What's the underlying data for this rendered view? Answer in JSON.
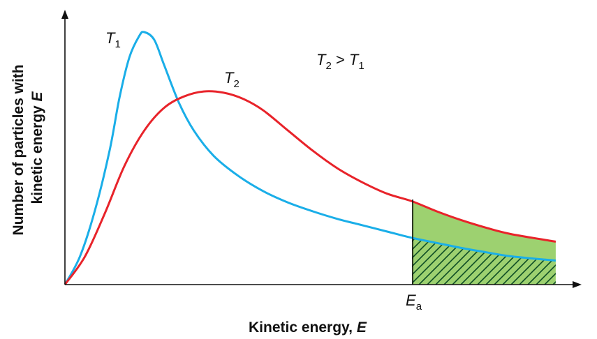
{
  "chart_data": {
    "type": "line",
    "title": "",
    "xlabel": {
      "text": "Kinetic energy, ",
      "var": "E"
    },
    "ylabel": {
      "line1": "Number of particles with",
      "line2_text": "kinetic energy ",
      "line2_var": "E"
    },
    "xlim": [
      0,
      10
    ],
    "ylim": [
      0,
      10
    ],
    "ticks": false,
    "grid": false,
    "legend": "none",
    "threshold": {
      "symbol": "E",
      "subscript": "a",
      "x": 7.0
    },
    "series": [
      {
        "name": "T1",
        "color": "#1aaee8",
        "label": {
          "symbol": "T",
          "subscript": "1"
        },
        "x": [
          0,
          0.3,
          0.6,
          0.9,
          1.1,
          1.3,
          1.5,
          1.6,
          1.8,
          2.0,
          2.3,
          2.6,
          3.0,
          3.5,
          4.0,
          4.5,
          5.0,
          5.5,
          6.0,
          6.5,
          7.0,
          7.5,
          8.0,
          8.5,
          9.0,
          9.9
        ],
        "y": [
          0,
          1.1,
          2.9,
          5.3,
          7.4,
          9.0,
          9.85,
          10.0,
          9.7,
          8.7,
          7.2,
          6.1,
          5.1,
          4.3,
          3.7,
          3.25,
          2.9,
          2.6,
          2.35,
          2.1,
          1.85,
          1.65,
          1.45,
          1.28,
          1.12,
          0.95
        ]
      },
      {
        "name": "T2",
        "color": "#e8232a",
        "label": {
          "symbol": "T",
          "subscript": "2"
        },
        "x": [
          0,
          0.4,
          0.8,
          1.2,
          1.6,
          2.0,
          2.4,
          2.8,
          3.2,
          3.6,
          4.0,
          4.5,
          5.0,
          5.5,
          6.0,
          6.5,
          7.0,
          7.5,
          8.0,
          8.5,
          9.0,
          9.9
        ],
        "y": [
          0,
          1.1,
          2.8,
          4.7,
          6.1,
          7.0,
          7.45,
          7.65,
          7.6,
          7.35,
          6.9,
          6.1,
          5.3,
          4.6,
          4.05,
          3.6,
          3.3,
          2.9,
          2.55,
          2.25,
          2.0,
          1.7
        ]
      }
    ],
    "annotation": {
      "left_symbol": "T",
      "left_subscript": "2",
      "operator": " > ",
      "right_symbol": "T",
      "right_subscript": "1"
    },
    "fills": {
      "between_color": "#9dd170",
      "hatch_color": "#0d4d24"
    }
  }
}
